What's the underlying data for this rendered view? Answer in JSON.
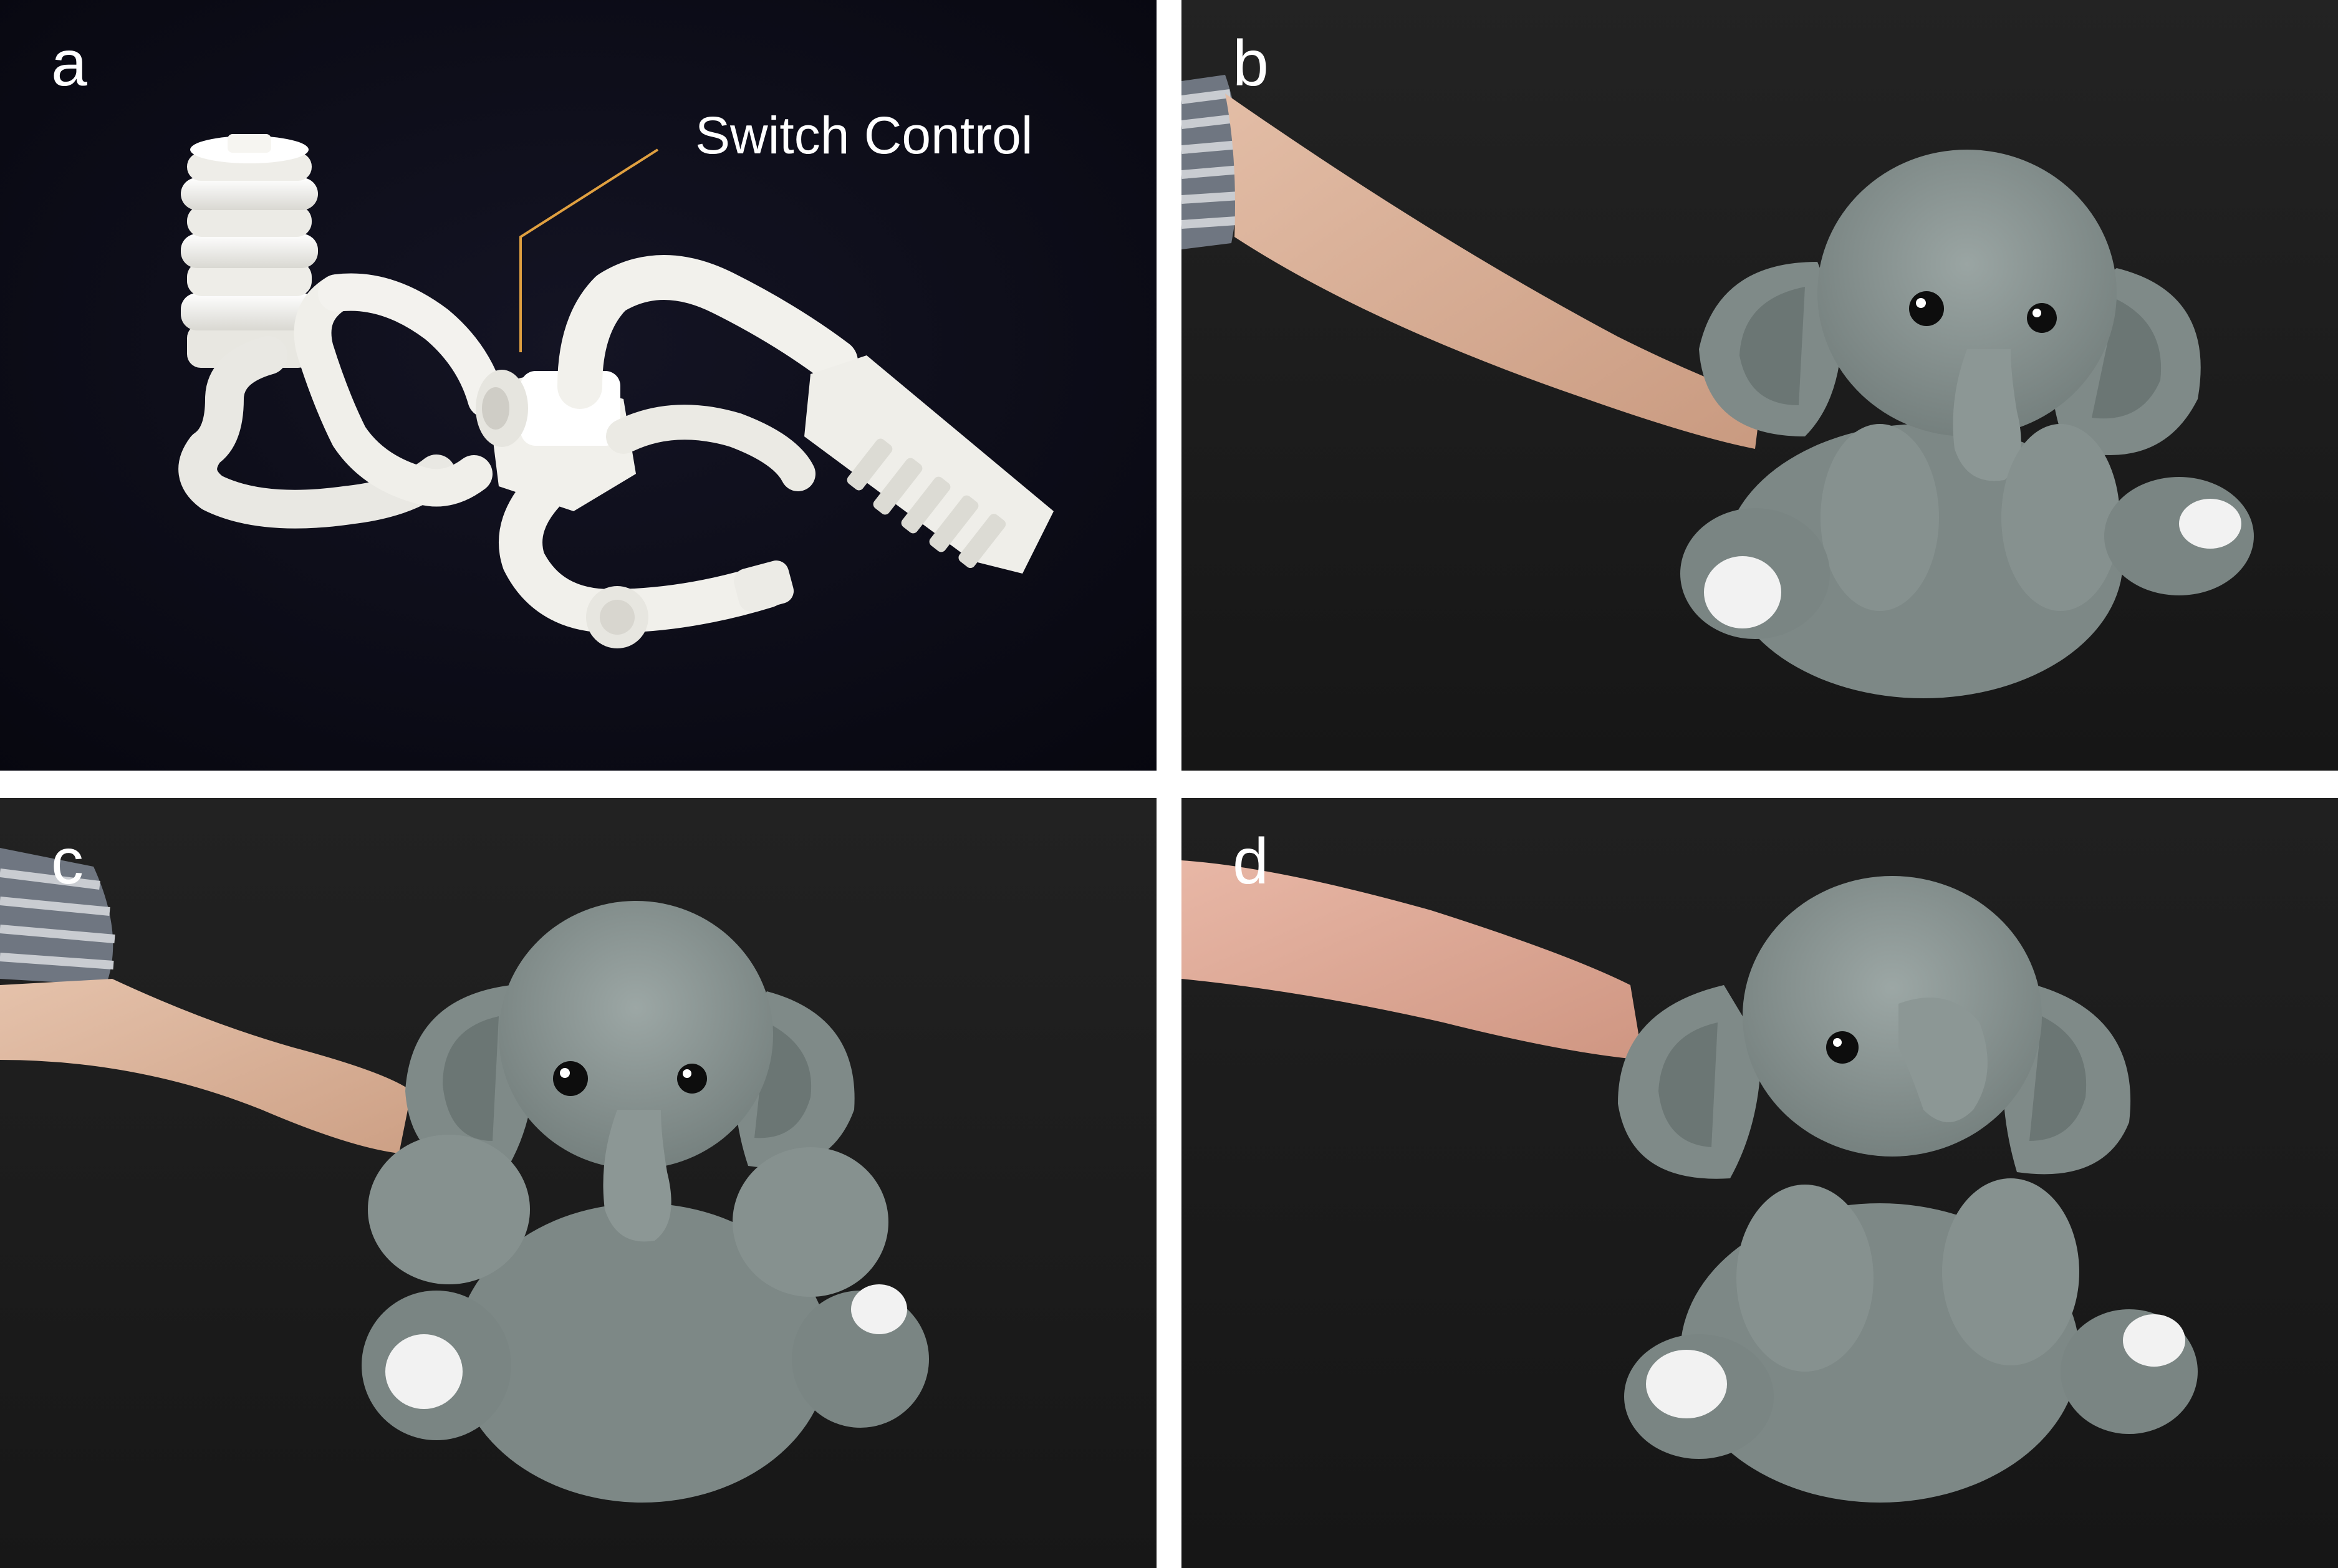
{
  "panels": {
    "a": {
      "letter": "a",
      "callout": "Switch Control"
    },
    "b": {
      "letter": "b"
    },
    "c": {
      "letter": "c"
    },
    "d": {
      "letter": "d"
    }
  },
  "colors": {
    "panel_a_background": "#0b0b18",
    "panel_background": "#1a1a1a",
    "callout_line": "#e0a040",
    "mechanism": "#f3f2ee",
    "plush": "#8d9896",
    "plush_dark": "#6b7674",
    "plush_foot_pad": "#f4f4f4",
    "skin": "#d7ae95"
  }
}
